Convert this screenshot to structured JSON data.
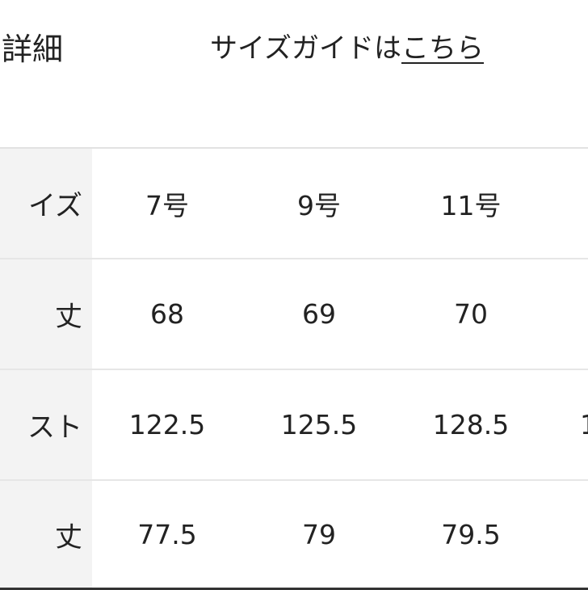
{
  "header": {
    "title": "詳細",
    "guide_prefix": "サイズガイドは",
    "guide_link": "こちら"
  },
  "table": {
    "rows": [
      {
        "label": "イズ",
        "values": [
          "7号",
          "9号",
          "11号"
        ]
      },
      {
        "label": "丈",
        "values": [
          "68",
          "69",
          "70"
        ]
      },
      {
        "label": "スト",
        "values": [
          "122.5",
          "125.5",
          "128.5"
        ],
        "partial": "1"
      },
      {
        "label": "丈",
        "values": [
          "77.5",
          "79",
          "79.5"
        ]
      }
    ]
  }
}
